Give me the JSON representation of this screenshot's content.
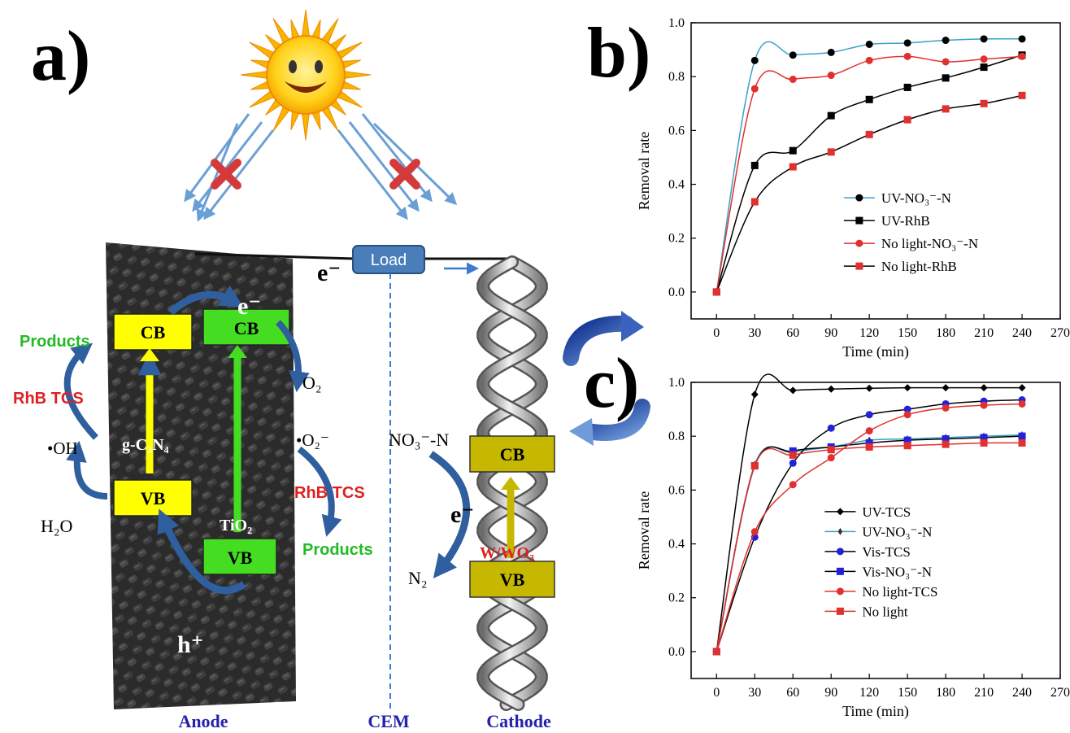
{
  "panel_a": {
    "label": "a)",
    "load": "Load",
    "electron": "e⁻",
    "hole": "h⁺",
    "anode_label": "Anode",
    "cem_label": "CEM",
    "cathode_label": "Cathode",
    "cb": "CB",
    "vb": "VB",
    "g_c3n4": "g-C₃N₄",
    "tio2": "TiO₂",
    "products": "Products",
    "rhb_tcs": "RhB TCS",
    "oh_radical": "•OH",
    "h2o": "H₂O",
    "o2": "O₂",
    "o2_radical": "•O₂⁻",
    "no3n": "NO₃⁻-N",
    "n2": "N₂",
    "w_wo3": "W/WO₃",
    "colors": {
      "yellow_band": "#ffff00",
      "green_band": "#44dd22",
      "olive_band": "#c6b800",
      "arrow_blue": "#2f5f9e",
      "red_text": "#e02020",
      "green_text": "#22bb22",
      "label_blue": "#2222aa"
    }
  },
  "label_b": "b)",
  "label_c": "c)",
  "chart_data": [
    {
      "type": "line",
      "panel": "b",
      "xlabel": "Time (min)",
      "ylabel": "Removal rate",
      "xlim": [
        -20,
        270
      ],
      "ylim": [
        -0.1,
        1.0
      ],
      "xticks": [
        0,
        30,
        60,
        90,
        120,
        150,
        180,
        210,
        240,
        270
      ],
      "yticks": [
        "0.0",
        "0.2",
        "0.4",
        "0.6",
        "0.8",
        "1.0"
      ],
      "legend_position": "center-right",
      "x": [
        0,
        30,
        60,
        90,
        120,
        150,
        180,
        210,
        240
      ],
      "series": [
        {
          "name": "UV-NO₃⁻-N",
          "color": "#3aa0c8",
          "marker": "circle",
          "marker_color": "#000000",
          "values": [
            0.0,
            0.86,
            0.88,
            0.89,
            0.92,
            0.925,
            0.935,
            0.94,
            0.94
          ]
        },
        {
          "name": "UV-RhB",
          "color": "#000000",
          "marker": "square",
          "marker_color": "#000000",
          "values": [
            0.0,
            0.47,
            0.525,
            0.655,
            0.715,
            0.76,
            0.795,
            0.835,
            0.88
          ]
        },
        {
          "name": "No light-NO₃⁻-N",
          "color": "#e03030",
          "marker": "circle",
          "marker_color": "#e03030",
          "values": [
            0.0,
            0.755,
            0.79,
            0.805,
            0.86,
            0.875,
            0.855,
            0.865,
            0.875
          ]
        },
        {
          "name": "No light-RhB",
          "color": "#000000",
          "marker": "square",
          "marker_color": "#e03030",
          "values": [
            0.0,
            0.335,
            0.465,
            0.52,
            0.585,
            0.64,
            0.68,
            0.7,
            0.73
          ]
        }
      ]
    },
    {
      "type": "line",
      "panel": "c",
      "xlabel": "Time (min)",
      "ylabel": "Removal rate",
      "xlim": [
        -20,
        270
      ],
      "ylim": [
        -0.1,
        1.0
      ],
      "xticks": [
        0,
        30,
        60,
        90,
        120,
        150,
        180,
        210,
        240,
        270
      ],
      "yticks": [
        "0.0",
        "0.2",
        "0.4",
        "0.6",
        "0.8",
        "1.0"
      ],
      "legend_position": "bottom-right",
      "x": [
        0,
        30,
        60,
        90,
        120,
        150,
        180,
        210,
        240
      ],
      "series": [
        {
          "name": "UV-TCS",
          "color": "#000000",
          "marker": "diamond",
          "marker_color": "#000000",
          "values": [
            0.0,
            0.955,
            0.97,
            0.975,
            0.978,
            0.98,
            0.98,
            0.98,
            0.98
          ]
        },
        {
          "name": "UV-NO₃⁻-N",
          "color": "#3aa0c8",
          "marker": "star",
          "marker_color": "#333333",
          "values": [
            0.0,
            0.695,
            0.74,
            0.76,
            0.785,
            0.79,
            0.795,
            0.8,
            0.805
          ]
        },
        {
          "name": "Vis-TCS",
          "color": "#000000",
          "marker": "circle",
          "marker_color": "#2222dd",
          "values": [
            0.0,
            0.425,
            0.7,
            0.83,
            0.88,
            0.9,
            0.92,
            0.93,
            0.935
          ]
        },
        {
          "name": "Vis-NO₃⁻-N",
          "color": "#000000",
          "marker": "square",
          "marker_color": "#2222dd",
          "values": [
            0.0,
            0.69,
            0.745,
            0.76,
            0.775,
            0.785,
            0.79,
            0.795,
            0.8
          ]
        },
        {
          "name": "No light-TCS",
          "color": "#e03030",
          "marker": "circle",
          "marker_color": "#e03030",
          "values": [
            0.0,
            0.445,
            0.62,
            0.72,
            0.82,
            0.88,
            0.905,
            0.915,
            0.92
          ]
        },
        {
          "name": "No light",
          "color": "#e03030",
          "marker": "square",
          "marker_color": "#e03030",
          "values": [
            0.0,
            0.69,
            0.73,
            0.75,
            0.76,
            0.765,
            0.77,
            0.775,
            0.775
          ]
        }
      ]
    }
  ]
}
